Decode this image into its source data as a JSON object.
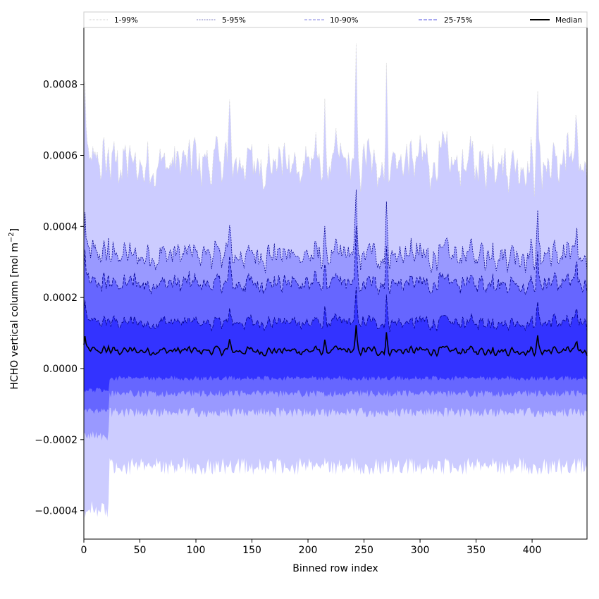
{
  "chart_data": {
    "type": "area",
    "xlabel": "Binned row index",
    "ylabel": "HCHO vertical column [mol m",
    "ylabel_sup": "−2",
    "ylabel_end": "]",
    "xlim": [
      0,
      449
    ],
    "ylim": [
      -0.00048,
      0.00096
    ],
    "x_ticks": [
      0,
      50,
      100,
      150,
      200,
      250,
      300,
      350,
      400
    ],
    "x_tick_labels": [
      "0",
      "50",
      "100",
      "150",
      "200",
      "250",
      "300",
      "350",
      "400"
    ],
    "y_ticks": [
      -0.0004,
      -0.0002,
      0.0,
      0.0002,
      0.0004,
      0.0006,
      0.0008
    ],
    "y_tick_labels": [
      "−0.0004",
      "−0.0002",
      "0.0000",
      "0.0002",
      "0.0004",
      "0.0006",
      "0.0008"
    ],
    "n_points": 450,
    "legend_position": "top, above plot area",
    "series": [
      {
        "name": "1-99%",
        "band_color": "#ccccff",
        "line_color": "#d9d9d9",
        "dash": "1,1",
        "upper_base": 0.00058,
        "lower_base": -0.00025
      },
      {
        "name": "5-95%",
        "band_color": "#9999ff",
        "line_color": "#00008b",
        "dash": "2,1.5",
        "upper_base": 0.00032,
        "lower_base": -0.00011
      },
      {
        "name": "10-90%",
        "band_color": "#6666ff",
        "line_color": "#00008b",
        "dash": "4,2",
        "upper_base": 0.00024,
        "lower_base": -6e-05
      },
      {
        "name": "25-75%",
        "band_color": "#3333ff",
        "line_color": "#00008b",
        "dash": "5,2",
        "upper_base": 0.00013,
        "lower_base": -2e-05
      },
      {
        "name": "Median",
        "line_color": "#000000",
        "base": 5e-05
      }
    ],
    "legend_line_colors": [
      "#cccccc",
      "#8080c0",
      "#8080e0",
      "#5050e0",
      "#000000"
    ],
    "spikes": [
      {
        "x": 1,
        "amp": 0.00021
      },
      {
        "x": 22,
        "amp": 5e-05
      },
      {
        "x": 130,
        "amp": 0.00013
      },
      {
        "x": 215,
        "amp": 0.0001
      },
      {
        "x": 243,
        "amp": 0.00031
      },
      {
        "x": 270,
        "amp": 0.00024
      },
      {
        "x": 365,
        "amp": 0.0001
      },
      {
        "x": 405,
        "amp": 0.00018
      },
      {
        "x": 440,
        "amp": 8e-05
      }
    ],
    "lower_extra": {
      "x_end": 22,
      "amp": 0.00012
    }
  }
}
